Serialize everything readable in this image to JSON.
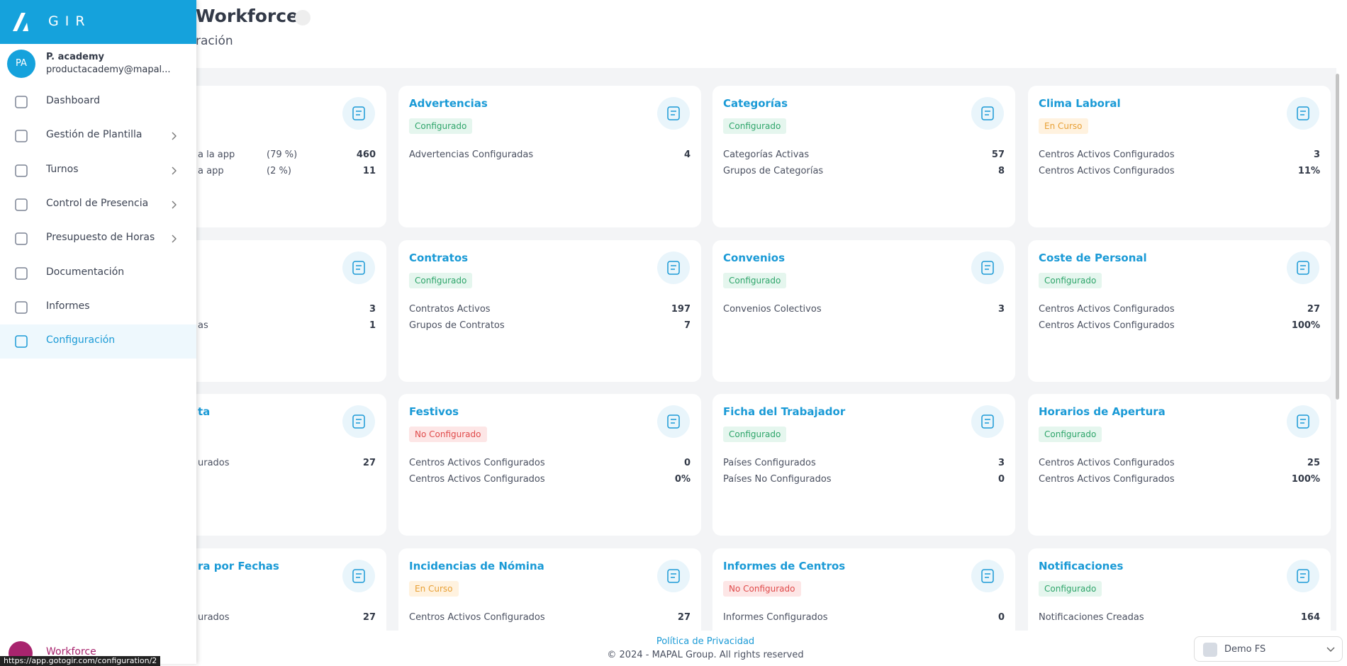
{
  "header": {
    "title": "Workforce",
    "subtitle": "ración"
  },
  "sidebar": {
    "brand": "GIR",
    "user": {
      "initials": "PA",
      "name": "P. academy",
      "email": "productacademy@mapal..."
    },
    "menu": [
      {
        "label": "Dashboard"
      },
      {
        "label": "Gestión de Plantilla",
        "submenu": true
      },
      {
        "label": "Turnos",
        "submenu": true
      },
      {
        "label": "Control de Presencia",
        "submenu": true
      },
      {
        "label": "Presupuesto de Horas",
        "submenu": true
      },
      {
        "label": "Documentación"
      },
      {
        "label": "Informes"
      },
      {
        "label": "Configuración",
        "active": true
      }
    ],
    "app": "Workforce"
  },
  "cards": [
    {
      "rows": [
        {
          "label": "a la app",
          "pct": "(79 %)",
          "value": "460"
        },
        {
          "label": "a app",
          "pct": "(2 %)",
          "value": "11"
        }
      ]
    },
    {
      "title": "Advertencias",
      "status": "Configurado",
      "rows": [
        {
          "label": "Advertencias Configuradas",
          "value": "4"
        }
      ]
    },
    {
      "title": "Categorías",
      "status": "Configurado",
      "rows": [
        {
          "label": "Categorías Activas",
          "value": "57"
        },
        {
          "label": "Grupos de Categorías",
          "value": "8"
        }
      ]
    },
    {
      "title": "Clima Laboral",
      "status": "En Curso",
      "rows": [
        {
          "label": "Centros Activos Configurados",
          "value": "3"
        },
        {
          "label": "Centros Activos Configurados",
          "value": "11%"
        }
      ]
    },
    {
      "rows": [
        {
          "value": "3"
        },
        {
          "label": "as",
          "value": "1"
        }
      ]
    },
    {
      "title": "Contratos",
      "status": "Configurado",
      "rows": [
        {
          "label": "Contratos Activos",
          "value": "197"
        },
        {
          "label": "Grupos de Contratos",
          "value": "7"
        }
      ]
    },
    {
      "title": "Convenios",
      "status": "Configurado",
      "rows": [
        {
          "label": "Convenios Colectivos",
          "value": "3"
        }
      ]
    },
    {
      "title": "Coste de Personal",
      "status": "Configurado",
      "rows": [
        {
          "label": "Centros Activos Configurados",
          "value": "27"
        },
        {
          "label": "Centros Activos Configurados",
          "value": "100%"
        }
      ]
    },
    {
      "title": "ta",
      "rows": [
        {
          "label": "urados",
          "value": "27"
        }
      ]
    },
    {
      "title": "Festivos",
      "status": "No Configurado",
      "rows": [
        {
          "label": "Centros Activos Configurados",
          "value": "0"
        },
        {
          "label": "Centros Activos Configurados",
          "value": "0%"
        }
      ]
    },
    {
      "title": "Ficha del Trabajador",
      "status": "Configurado",
      "rows": [
        {
          "label": "Países Configurados",
          "value": "3"
        },
        {
          "label": "Países No Configurados",
          "value": "0"
        }
      ]
    },
    {
      "title": "Horarios de Apertura",
      "status": "Configurado",
      "rows": [
        {
          "label": "Centros Activos Configurados",
          "value": "25"
        },
        {
          "label": "Centros Activos Configurados",
          "value": "100%"
        }
      ]
    },
    {
      "title": "ra por Fechas",
      "rows": [
        {
          "label": "urados",
          "value": "27"
        }
      ]
    },
    {
      "title": "Incidencias de Nómina",
      "status": "En Curso",
      "rows": [
        {
          "label": "Centros Activos Configurados",
          "value": "27"
        }
      ]
    },
    {
      "title": "Informes de Centros",
      "status": "No Configurado",
      "rows": [
        {
          "label": "Informes Configurados",
          "value": "0"
        }
      ]
    },
    {
      "title": "Notificaciones",
      "status": "Configurado",
      "rows": [
        {
          "label": "Notificaciones Creadas",
          "value": "164"
        }
      ]
    }
  ],
  "footer": {
    "privacy": "Política de Privacidad",
    "copyright": "© 2024 - MAPAL Group. All rights reserved"
  },
  "selector": "Demo FS",
  "status_url": "https://app.gotogir.com/configuration/2"
}
